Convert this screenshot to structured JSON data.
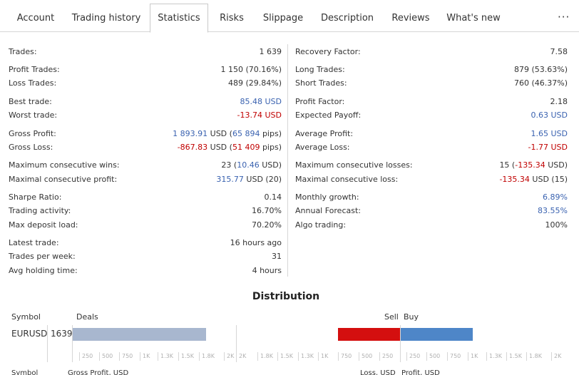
{
  "tabs": [
    {
      "label": "Account",
      "active": false
    },
    {
      "label": "Trading history",
      "active": false
    },
    {
      "label": "Statistics",
      "active": true
    },
    {
      "label": "Risks",
      "active": false
    },
    {
      "label": "Slippage",
      "active": false
    },
    {
      "label": "Description",
      "active": false
    },
    {
      "label": "Reviews",
      "active": false
    },
    {
      "label": "What's new",
      "active": false
    }
  ],
  "more_label": "···",
  "stats_left": [
    {
      "label": "Trades:",
      "value": "1 639"
    },
    {
      "label": "Profit Trades:",
      "value": "1 150 (70.16%)"
    },
    {
      "label": "Loss Trades:",
      "value": "489 (29.84%)"
    },
    {
      "label": "Best trade:",
      "value": "85.48 USD"
    },
    {
      "label": "Worst trade:",
      "value": "-13.74 USD"
    },
    {
      "label": "Gross Profit:",
      "value_a": "1 893.91",
      "value_b": " USD (",
      "value_c": "65 894",
      "value_d": " pips)"
    },
    {
      "label": "Gross Loss:",
      "value_a": "-867.83",
      "value_b": " USD (",
      "value_c": "51 409",
      "value_d": " pips)"
    },
    {
      "label": "Maximum consecutive wins:",
      "value_a": "23 (",
      "value_b": "10.46",
      "value_c": " USD)"
    },
    {
      "label": "Maximal consecutive profit:",
      "value_a": "315.77",
      "value_b": " USD (20)"
    },
    {
      "label": "Sharpe Ratio:",
      "value": "0.14"
    },
    {
      "label": "Trading activity:",
      "value": "16.70%"
    },
    {
      "label": "Max deposit load:",
      "value": "70.20%"
    },
    {
      "label": "Latest trade:",
      "value": "16 hours ago"
    },
    {
      "label": "Trades per week:",
      "value": "31"
    },
    {
      "label": "Avg holding time:",
      "value": "4 hours"
    }
  ],
  "stats_right": [
    {
      "label": "Recovery Factor:",
      "value": "7.58"
    },
    {
      "label": "Long Trades:",
      "value": "879 (53.63%)"
    },
    {
      "label": "Short Trades:",
      "value": "760 (46.37%)"
    },
    {
      "label": "Profit Factor:",
      "value": "2.18"
    },
    {
      "label": "Expected Payoff:",
      "value": "0.63 USD"
    },
    {
      "label": "Average Profit:",
      "value": "1.65 USD"
    },
    {
      "label": "Average Loss:",
      "value": "-1.77 USD"
    },
    {
      "label": "Maximum consecutive losses:",
      "value_a": "15 (",
      "value_b": "-135.34",
      "value_c": " USD)"
    },
    {
      "label": "Maximal consecutive loss:",
      "value_a": "-135.34",
      "value_b": " USD (15)"
    },
    {
      "label": "Monthly growth:",
      "value": "6.89%"
    },
    {
      "label": "Annual Forecast:",
      "value": "83.55%"
    },
    {
      "label": "Algo trading:",
      "value": "100%"
    }
  ],
  "distribution": {
    "title": "Distribution",
    "symbol_header": "Symbol",
    "deals_header": "Deals",
    "sell_header": "Sell",
    "buy_header": "Buy",
    "row": {
      "symbol": "EURUSD",
      "deals": "1639",
      "deals_value": 1639,
      "deals_axis_max": 2000,
      "sell": 760,
      "buy": 879,
      "side_axis_max": 1000
    },
    "deals_ticks": [
      "250",
      "500",
      "750",
      "1K",
      "1.3K",
      "1.5K",
      "1.8K",
      "2K"
    ],
    "deals_ticks2": [
      "2K",
      "1.8K",
      "1.5K",
      "1.3K",
      "1K"
    ],
    "sell_ticks": [
      "750",
      "500",
      "250"
    ],
    "buy_ticks": [
      "250",
      "500",
      "750",
      "1K",
      "1.3K",
      "1.5K",
      "1.8K",
      "2K"
    ],
    "colors": {
      "deals": "#a8b7cf",
      "sell": "#d40f0f",
      "buy": "#4e86c8"
    }
  },
  "bottom_headers": {
    "symbol": "Symbol",
    "gross_profit": "Gross Profit, USD",
    "loss": "Loss, USD",
    "profit": "Profit, USD"
  }
}
